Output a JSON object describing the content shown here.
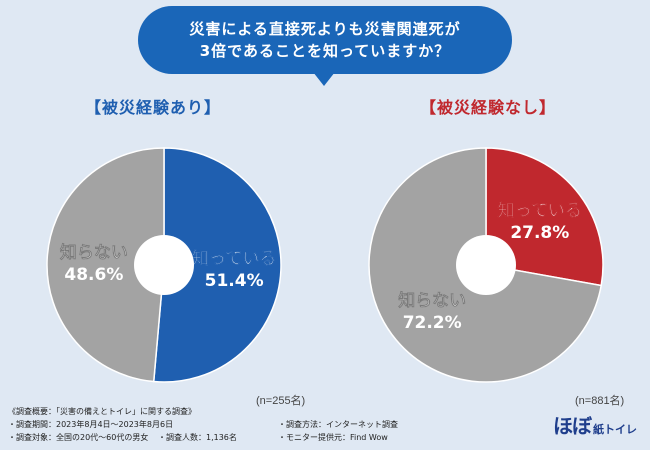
{
  "question": {
    "line1": "災害による直接死よりも災害関連死が",
    "line2": "3倍であることを知っていますか？"
  },
  "colors": {
    "bubble": "#1a66b8",
    "blue": "#1f5fb0",
    "red": "#c0282e",
    "gray": "#a3a3a3",
    "center": "#ffffff"
  },
  "chart_data": [
    {
      "type": "pie",
      "title": "【被災経験あり】",
      "n_label": "(n=255名)",
      "slices": [
        {
          "label": "知っている",
          "value": 51.4,
          "value_label": "51.4%",
          "color": "#1f5fb0"
        },
        {
          "label": "知らない",
          "value": 48.6,
          "value_label": "48.6%",
          "color": "#a3a3a3"
        }
      ]
    },
    {
      "type": "pie",
      "title": "【被災経験なし】",
      "n_label": "(n=881名)",
      "slices": [
        {
          "label": "知っている",
          "value": 27.8,
          "value_label": "27.8%",
          "color": "#c0282e"
        },
        {
          "label": "知らない",
          "value": 72.2,
          "value_label": "72.2%",
          "color": "#a3a3a3"
        }
      ]
    }
  ],
  "footer": {
    "summary": "《調査概要：「災害の備えとトイレ」に関する調査》",
    "period": "・調査期間：2023年8月4日〜2023年8月6日",
    "method": "・調査方法：インターネット調査",
    "target": "・調査対象：全国の20代〜60代の男女",
    "count": "・調査人数：1,136名",
    "provider": "・モニター提供元：Find Wow"
  },
  "logo": {
    "main": "ほぼ",
    "sub": "紙トイレ"
  }
}
